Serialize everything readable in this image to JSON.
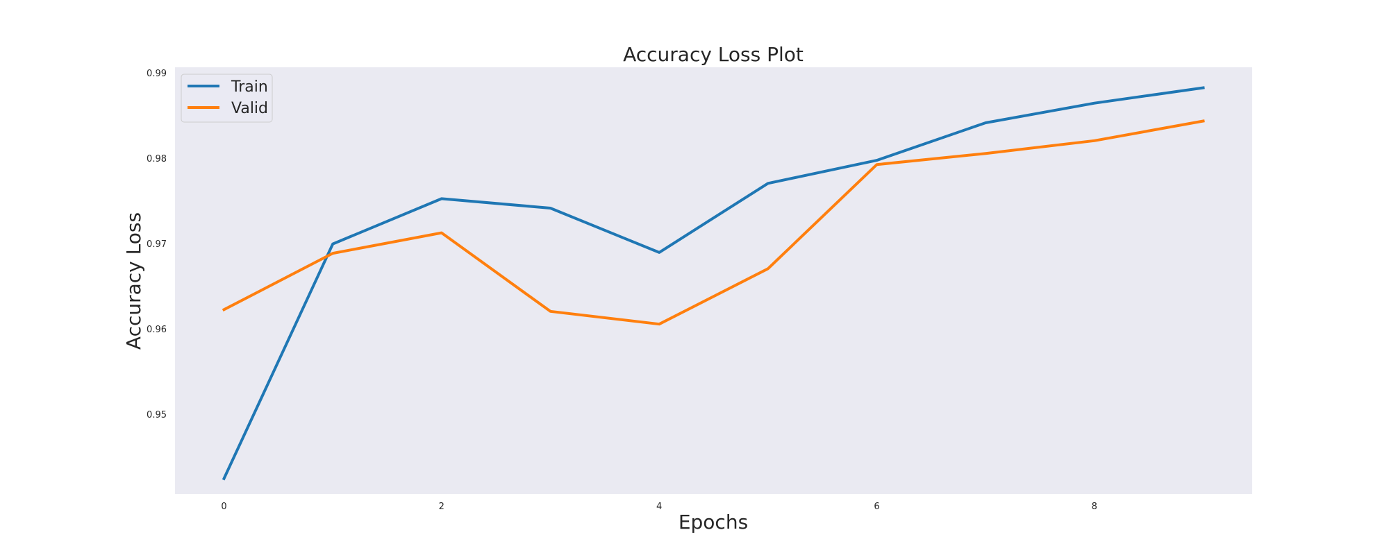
{
  "chart_data": {
    "type": "line",
    "title": "Accuracy Loss Plot",
    "xlabel": "Epochs",
    "ylabel": "Accuracy Loss",
    "x": [
      0,
      1,
      2,
      3,
      4,
      5,
      6,
      7,
      8,
      9
    ],
    "xlim": [
      -0.45,
      9.45
    ],
    "ylim": [
      0.9407,
      0.9907
    ],
    "xticks": [
      0,
      2,
      4,
      6,
      8
    ],
    "yticks": [
      0.95,
      0.96,
      0.97,
      0.98,
      0.99
    ],
    "grid": false,
    "background": "#eaeaf2",
    "legend_position": "top-left",
    "series": [
      {
        "name": "Train",
        "color": "#1f77b4",
        "values": [
          0.9425,
          0.97,
          0.9753,
          0.9742,
          0.969,
          0.9771,
          0.9798,
          0.9842,
          0.9865,
          0.9883
        ]
      },
      {
        "name": "Valid",
        "color": "#ff7f0e",
        "values": [
          0.9623,
          0.9689,
          0.9713,
          0.9621,
          0.9606,
          0.9671,
          0.9793,
          0.9806,
          0.9821,
          0.9844
        ]
      }
    ]
  }
}
